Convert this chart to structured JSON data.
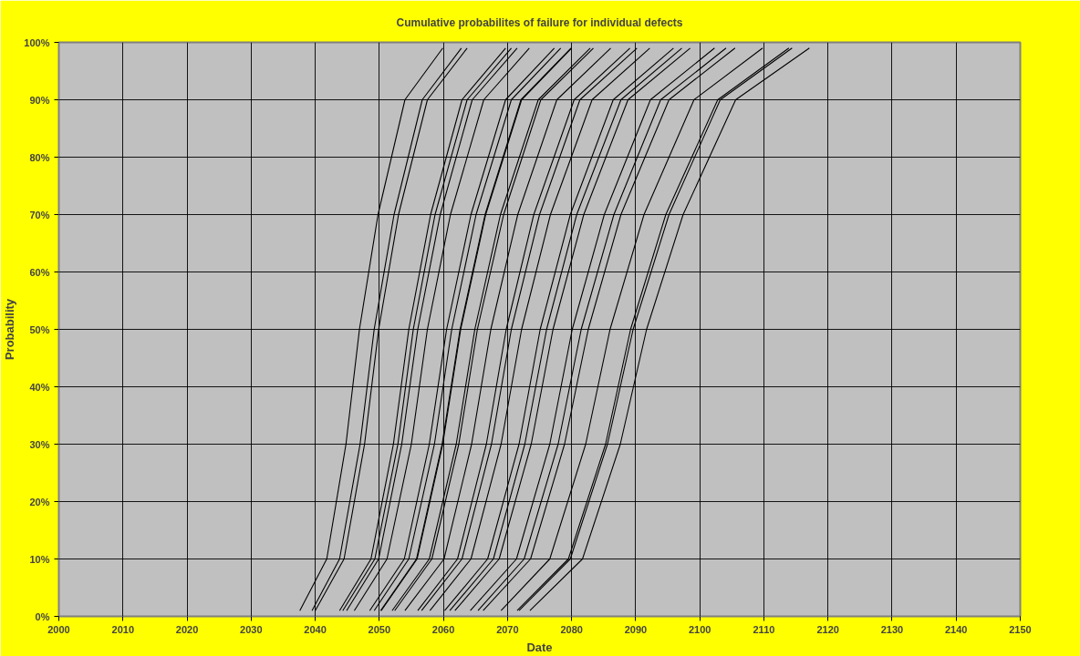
{
  "chart_data": {
    "type": "line",
    "title": "Cumulative probabilites of failure for individual defects",
    "xlabel": "Date",
    "ylabel": "Probability",
    "xlim": [
      2000,
      2150
    ],
    "xticks": [
      2000,
      2010,
      2020,
      2030,
      2040,
      2050,
      2060,
      2070,
      2080,
      2090,
      2100,
      2110,
      2120,
      2130,
      2140,
      2150
    ],
    "ylim": [
      0,
      100
    ],
    "yticks": [
      {
        "value": 0,
        "label": "0%"
      },
      {
        "value": 10,
        "label": "10%"
      },
      {
        "value": 20,
        "label": "20%"
      },
      {
        "value": 30,
        "label": "30%"
      },
      {
        "value": 40,
        "label": "40%"
      },
      {
        "value": 50,
        "label": "50%"
      },
      {
        "value": 60,
        "label": "60%"
      },
      {
        "value": 70,
        "label": "70%"
      },
      {
        "value": 80,
        "label": "80%"
      },
      {
        "value": 90,
        "label": "90%"
      },
      {
        "value": 100,
        "label": "100%"
      }
    ],
    "grid": true,
    "marker": "none",
    "line_style": "solid",
    "series": [
      {
        "color": "#000000",
        "x": [
          2037.6,
          2041.8,
          2044.8,
          2046.9,
          2049.8,
          2054.0,
          2059.9
        ],
        "values": [
          1,
          10,
          30,
          50,
          70,
          90,
          99
        ]
      },
      {
        "color": "#000000",
        "x": [
          2039.5,
          2043.8,
          2047.0,
          2049.2,
          2052.3,
          2056.7,
          2062.8
        ],
        "values": [
          1,
          10,
          30,
          50,
          70,
          90,
          99
        ]
      },
      {
        "color": "#000000",
        "x": [
          2040.0,
          2044.5,
          2047.7,
          2049.9,
          2053.0,
          2057.5,
          2063.7
        ],
        "values": [
          1,
          10,
          30,
          50,
          70,
          90,
          99
        ]
      },
      {
        "color": "#000000",
        "x": [
          2043.8,
          2048.7,
          2052.2,
          2054.6,
          2058.0,
          2062.9,
          2069.7
        ],
        "values": [
          1,
          10,
          30,
          50,
          70,
          90,
          99
        ]
      },
      {
        "color": "#000000",
        "x": [
          2044.3,
          2049.3,
          2052.9,
          2055.3,
          2058.7,
          2063.7,
          2070.6
        ],
        "values": [
          1,
          10,
          30,
          50,
          70,
          90,
          99
        ]
      },
      {
        "color": "#000000",
        "x": [
          2044.9,
          2049.9,
          2053.5,
          2056.0,
          2059.5,
          2064.5,
          2071.5
        ],
        "values": [
          1,
          10,
          30,
          50,
          70,
          90,
          99
        ]
      },
      {
        "color": "#000000",
        "x": [
          2046.1,
          2051.2,
          2055.0,
          2057.5,
          2061.1,
          2066.3,
          2073.4
        ],
        "values": [
          1,
          10,
          30,
          50,
          70,
          90,
          99
        ]
      },
      {
        "color": "#000000",
        "x": [
          2048.5,
          2053.9,
          2057.8,
          2060.5,
          2064.3,
          2069.7,
          2077.3
        ],
        "values": [
          1,
          10,
          30,
          50,
          70,
          90,
          99
        ]
      },
      {
        "color": "#000000",
        "x": [
          2049.2,
          2054.6,
          2058.6,
          2061.3,
          2065.1,
          2070.6,
          2078.3
        ],
        "values": [
          1,
          10,
          30,
          50,
          70,
          90,
          99
        ]
      },
      {
        "color": "#000000",
        "x": [
          2050.2,
          2055.8,
          2059.8,
          2062.6,
          2066.5,
          2072.1,
          2079.9
        ],
        "values": [
          1,
          10,
          30,
          50,
          70,
          90,
          99
        ]
      },
      {
        "color": "#000000",
        "x": [
          2050.3,
          2055.9,
          2059.9,
          2062.7,
          2066.6,
          2072.2,
          2080.0
        ],
        "values": [
          1,
          10,
          30,
          50,
          70,
          90,
          99
        ]
      },
      {
        "color": "#000000",
        "x": [
          2052.0,
          2057.8,
          2062.0,
          2064.9,
          2068.9,
          2074.8,
          2082.9
        ],
        "values": [
          1,
          10,
          30,
          50,
          70,
          90,
          99
        ]
      },
      {
        "color": "#000000",
        "x": [
          2052.4,
          2058.2,
          2062.4,
          2065.3,
          2069.4,
          2075.2,
          2083.4
        ],
        "values": [
          1,
          10,
          30,
          50,
          70,
          90,
          99
        ]
      },
      {
        "color": "#000000",
        "x": [
          2054.0,
          2060.1,
          2064.4,
          2067.4,
          2071.6,
          2077.7,
          2086.1
        ],
        "values": [
          1,
          10,
          30,
          50,
          70,
          90,
          99
        ]
      },
      {
        "color": "#000000",
        "x": [
          2056.0,
          2062.2,
          2066.7,
          2069.8,
          2074.1,
          2080.4,
          2089.1
        ],
        "values": [
          1,
          10,
          30,
          50,
          70,
          90,
          99
        ]
      },
      {
        "color": "#000000",
        "x": [
          2056.6,
          2062.9,
          2067.5,
          2070.6,
          2075.0,
          2081.3,
          2090.2
        ],
        "values": [
          1,
          10,
          30,
          50,
          70,
          90,
          99
        ]
      },
      {
        "color": "#000000",
        "x": [
          2057.9,
          2064.3,
          2069.0,
          2072.2,
          2076.7,
          2083.2,
          2092.2
        ],
        "values": [
          1,
          10,
          30,
          50,
          70,
          90,
          99
        ]
      },
      {
        "color": "#000000",
        "x": [
          2060.2,
          2066.9,
          2071.8,
          2075.1,
          2079.8,
          2086.5,
          2095.9
        ],
        "values": [
          1,
          10,
          30,
          50,
          70,
          90,
          99
        ]
      },
      {
        "color": "#000000",
        "x": [
          2061.0,
          2067.8,
          2072.7,
          2076.1,
          2080.8,
          2087.7,
          2097.2
        ],
        "values": [
          1,
          10,
          30,
          50,
          70,
          90,
          99
        ]
      },
      {
        "color": "#000000",
        "x": [
          2061.8,
          2068.7,
          2073.7,
          2077.1,
          2081.9,
          2088.8,
          2098.5
        ],
        "values": [
          1,
          10,
          30,
          50,
          70,
          90,
          99
        ]
      },
      {
        "color": "#000000",
        "x": [
          2064.2,
          2071.4,
          2076.6,
          2080.1,
          2085.1,
          2092.3,
          2102.3
        ],
        "values": [
          1,
          10,
          30,
          50,
          70,
          90,
          99
        ]
      },
      {
        "color": "#000000",
        "x": [
          2065.4,
          2072.6,
          2077.9,
          2081.5,
          2086.6,
          2093.9,
          2104.1
        ],
        "values": [
          1,
          10,
          30,
          50,
          70,
          90,
          99
        ]
      },
      {
        "color": "#000000",
        "x": [
          2066.2,
          2073.6,
          2078.9,
          2082.6,
          2087.7,
          2095.2,
          2105.5
        ],
        "values": [
          1,
          10,
          30,
          50,
          70,
          90,
          99
        ]
      },
      {
        "color": "#000000",
        "x": [
          2069.0,
          2076.6,
          2082.2,
          2086.0,
          2091.3,
          2099.1,
          2109.8
        ],
        "values": [
          1,
          10,
          30,
          50,
          70,
          90,
          99
        ]
      },
      {
        "color": "#000000",
        "x": [
          2071.5,
          2079.5,
          2085.3,
          2089.2,
          2094.7,
          2102.8,
          2113.9
        ],
        "values": [
          1,
          10,
          30,
          50,
          70,
          90,
          99
        ]
      },
      {
        "color": "#000000",
        "x": [
          2071.8,
          2079.8,
          2085.6,
          2089.6,
          2095.2,
          2103.2,
          2114.4
        ],
        "values": [
          1,
          10,
          30,
          50,
          70,
          90,
          99
        ]
      },
      {
        "color": "#000000",
        "x": [
          2073.5,
          2081.7,
          2087.6,
          2091.7,
          2097.4,
          2105.6,
          2117.1
        ],
        "values": [
          1,
          10,
          30,
          50,
          70,
          90,
          99
        ]
      }
    ]
  }
}
